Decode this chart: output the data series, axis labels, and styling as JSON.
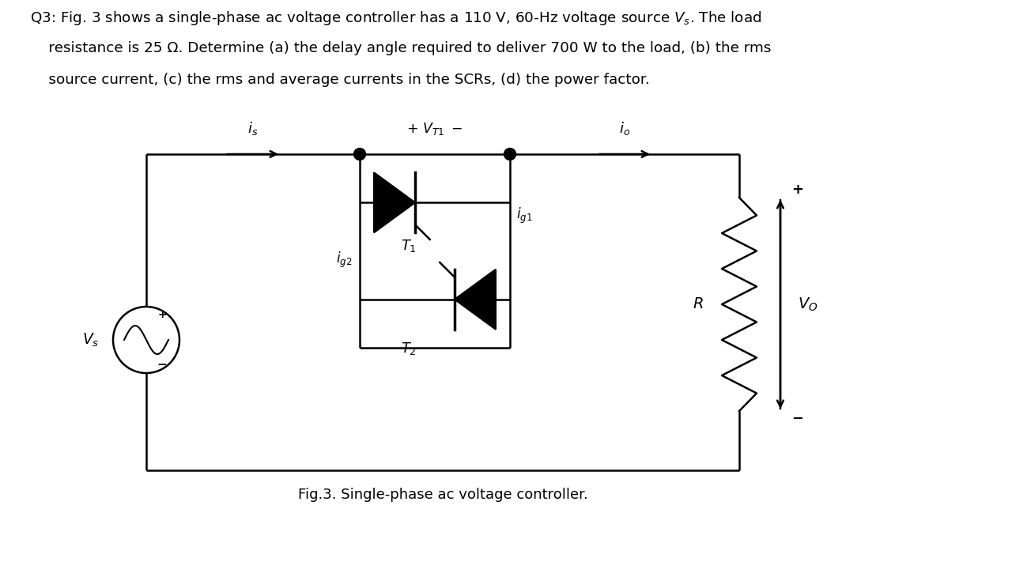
{
  "bg_color": "#ffffff",
  "text_color": "#000000",
  "line_color": "#000000",
  "caption": "Fig.3. Single-phase ac voltage controller.",
  "figsize": [
    12.8,
    7.3
  ],
  "dpi": 100,
  "text_line1": "Q3: Fig. 3 shows a single-phase ac voltage controller has a 110 V, 60-Hz voltage source $V_s$. The load",
  "text_line2": "    resistance is 25 Ω. Determine (a) the delay angle required to deliver 700 W to the load, (b) the rms",
  "text_line3": "    source current, (c) the rms and average currents in the SCRs, (d) the power factor."
}
